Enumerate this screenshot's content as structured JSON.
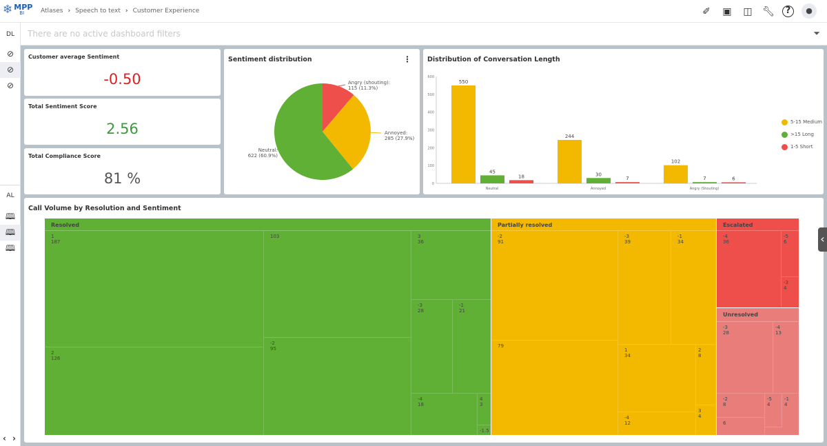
{
  "header": {
    "logo_text": "MPP",
    "logo_sub": "BI",
    "breadcrumbs": [
      "Atlases",
      "Speech to text",
      "Customer Experience"
    ],
    "icons": [
      "rocket-icon",
      "presentation-icon",
      "catalog-info-icon",
      "wrench-icon",
      "help-icon",
      "user-avatar-icon"
    ]
  },
  "filters": {
    "placeholder": "There are no active dashboard filters",
    "icon": "filter-clear-icon"
  },
  "sidebar": {
    "dl_label": "DL",
    "al_label": "AL",
    "dl_items": [
      "dashboard-gauge-icon",
      "dashboard-gauge-icon",
      "dashboard-gauge-icon"
    ],
    "al_items": [
      "book-icon",
      "book-icon",
      "book-icon"
    ],
    "selected_dl": 1,
    "selected_al": 1
  },
  "kpis": [
    {
      "title": "Customer average Sentiment",
      "value": "-0.50",
      "color": "#e02020"
    },
    {
      "title": "Total Sentiment Score",
      "value": "2.56",
      "color": "#3c9a3c"
    },
    {
      "title": "Total Compliance Score",
      "value": "81 %",
      "color": "#555555"
    }
  ],
  "colors": {
    "medium": "#f2b900",
    "long": "#5fb035",
    "short": "#ef4f4a",
    "unresolved": "#e97d7a"
  },
  "chart_data": [
    {
      "type": "pie",
      "title": "Sentiment distribution",
      "slices": [
        {
          "label": "Angry (shouting)",
          "value": 115,
          "pct": "11.3%",
          "text": "Angry (shouting):",
          "sub": "115 (11.3%)",
          "color": "#ef4f4a"
        },
        {
          "label": "Annoyed",
          "value": 285,
          "pct": "27.9%",
          "text": "Annoyed:",
          "sub": "285 (27.9%)",
          "color": "#f2b900"
        },
        {
          "label": "Neutral",
          "value": 622,
          "pct": "60.9%",
          "text": "Neutral:",
          "sub": "622 (60.9%)",
          "color": "#5fb035"
        }
      ]
    },
    {
      "type": "bar",
      "title": "Distribution of Conversation Length",
      "categories": [
        "Neutral",
        "Annoyed",
        "Angry (Shouting)"
      ],
      "ylim": [
        0,
        600
      ],
      "yticks": [
        0,
        100,
        200,
        300,
        400,
        500,
        600
      ],
      "legend_position": "right",
      "series": [
        {
          "name": "5-15 Medium",
          "values": [
            550,
            244,
            102
          ],
          "color": "#f2b900"
        },
        {
          "name": ">15 Long",
          "values": [
            45,
            30,
            7
          ],
          "color": "#5fb035"
        },
        {
          "name": "1-5 Short",
          "values": [
            18,
            7,
            6
          ],
          "color": "#ef4f4a"
        }
      ]
    },
    {
      "type": "treemap",
      "title": "Call Volume by Resolution and Sentiment",
      "groups": [
        {
          "name": "Resolved",
          "tiles": [
            [
              "1",
              "187"
            ],
            [
              "2",
              "126"
            ],
            [
              "",
              "103"
            ],
            [
              "-2",
              "95"
            ],
            [
              "3",
              "36"
            ],
            [
              "-3",
              "28"
            ],
            [
              "-1",
              "21"
            ],
            [
              "-4",
              "18"
            ],
            [
              "4",
              "3"
            ],
            [
              "-1.5",
              ""
            ]
          ]
        },
        {
          "name": "Partially resolved",
          "tiles": [
            [
              "-2",
              "91"
            ],
            [
              "",
              "79"
            ],
            [
              "-3",
              "39"
            ],
            [
              "-1",
              "34"
            ],
            [
              "1",
              "34"
            ],
            [
              "-4",
              "12"
            ],
            [
              "2",
              "8"
            ],
            [
              "3",
              "4"
            ]
          ]
        },
        {
          "name": "Escalated",
          "tiles": [
            [
              "-4",
              "36"
            ],
            [
              "-5",
              "6"
            ],
            [
              "-3",
              "4"
            ]
          ]
        },
        {
          "name": "Unresolved",
          "tiles": [
            [
              "-3",
              "28"
            ],
            [
              "-4",
              "13"
            ],
            [
              "-2",
              "8"
            ],
            [
              "",
              "6"
            ],
            [
              "-5",
              "4"
            ],
            [
              "-1",
              "4"
            ]
          ]
        }
      ]
    }
  ]
}
